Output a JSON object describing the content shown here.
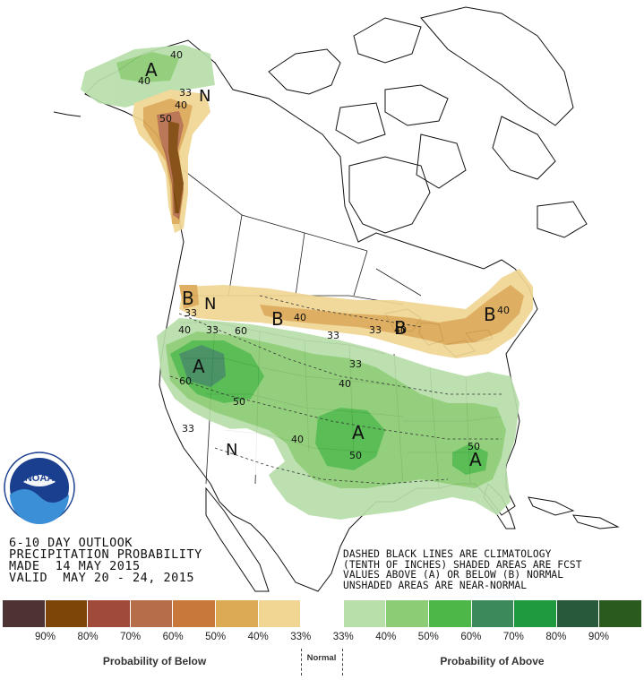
{
  "title": {
    "line1": "6-10 DAY OUTLOOK",
    "line2": "PRECIPITATION PROBABILITY",
    "line3": "MADE  14 MAY 2015",
    "line4": "VALID  MAY 20 - 24, 2015"
  },
  "note": {
    "line1": "DASHED BLACK LINES ARE CLIMATOLOGY",
    "line2": "(TENTH OF INCHES) SHADED AREAS ARE FCST",
    "line3": "VALUES ABOVE (A) OR BELOW (B) NORMAL",
    "line4": "UNSHADED AREAS ARE NEAR-NORMAL"
  },
  "logo": {
    "text": "NOAA",
    "icon": "noaa-logo-icon"
  },
  "legend": {
    "colors": [
      "#4d3333",
      "#7d4508",
      "#a04a3a",
      "#b66d4a",
      "#c8783a",
      "#dca955",
      "#f0d593",
      "#ffffff",
      "#b8deaa",
      "#8ccc74",
      "#4db848",
      "#3c8a5b",
      "#1f9a3f",
      "#27593a",
      "#2b5a1e"
    ],
    "ticks": [
      "90%",
      "80%",
      "70%",
      "60%",
      "50%",
      "40%",
      "33%",
      "33%",
      "40%",
      "50%",
      "60%",
      "70%",
      "80%",
      "90%"
    ],
    "below_label": "Probability of Below",
    "normal_label": "Normal",
    "above_label": "Probability of Above"
  },
  "map_labels": {
    "region_letters": [
      {
        "text": "A",
        "category": "above"
      },
      {
        "text": "N",
        "category": "normal"
      },
      {
        "text": "B",
        "category": "below"
      },
      {
        "text": "N",
        "category": "normal"
      },
      {
        "text": "B",
        "category": "below"
      },
      {
        "text": "B",
        "category": "below"
      },
      {
        "text": "B",
        "category": "below"
      },
      {
        "text": "A",
        "category": "above"
      },
      {
        "text": "A",
        "category": "above"
      },
      {
        "text": "N",
        "category": "normal"
      },
      {
        "text": "A",
        "category": "above"
      }
    ],
    "contour_values": [
      "40",
      "40",
      "33",
      "40",
      "50",
      "33",
      "40",
      "33",
      "33",
      "40",
      "33",
      "40",
      "60",
      "50",
      "40",
      "33",
      "40",
      "50",
      "50",
      "40",
      "33",
      "60"
    ]
  },
  "colors": {
    "above_33": "#b8deaa",
    "above_40": "#8ccc74",
    "above_50": "#4db848",
    "above_60": "#3c8a5b",
    "below_33": "#f0d593",
    "below_40": "#dca955",
    "below_50": "#b66d4a",
    "below_60": "#7d4508"
  }
}
